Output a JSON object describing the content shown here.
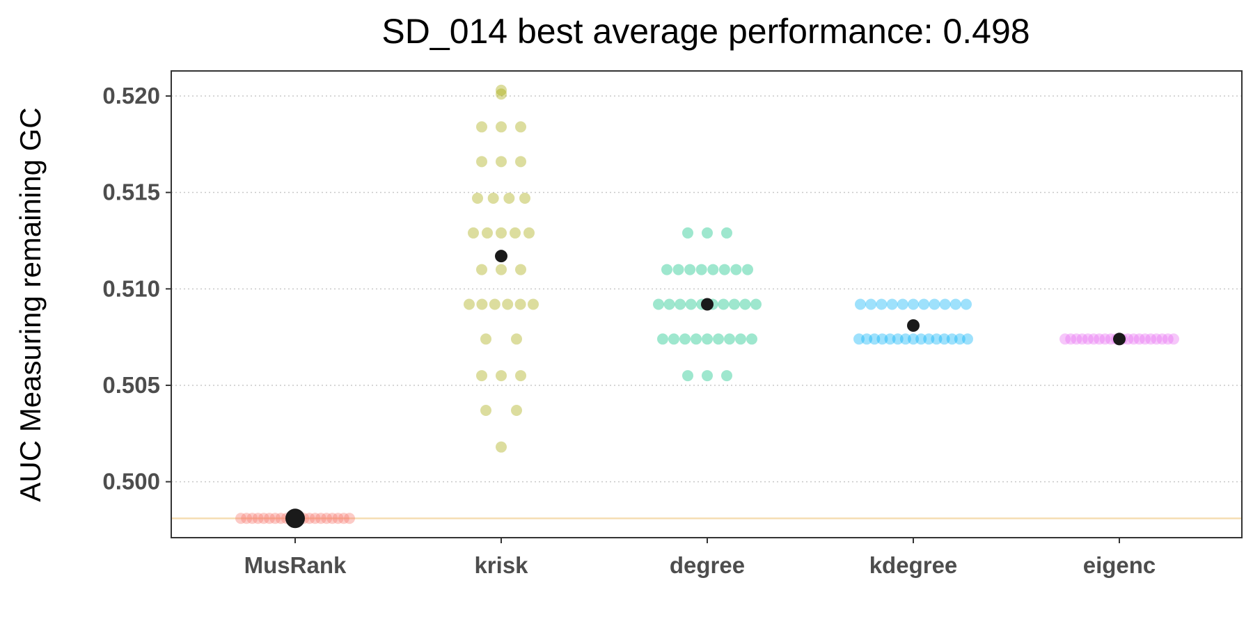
{
  "chart_data": {
    "type": "scatter",
    "title": "SD_014 best average performance: 0.498",
    "xlabel": "",
    "ylabel": "AUC Measuring remaining GC",
    "categories": [
      "MusRank",
      "krisk",
      "degree",
      "kdegree",
      "eigenc"
    ],
    "ylim": [
      0.4971,
      0.5213
    ],
    "yticks": [
      0.5,
      0.505,
      0.51,
      0.515,
      0.52
    ],
    "ytick_labels": [
      "0.500",
      "0.505",
      "0.510",
      "0.515",
      "0.520"
    ],
    "grid": "horizontal-major-dotted",
    "legend": "none",
    "reference_line": {
      "y": 0.4981,
      "color": "#f5deb3"
    },
    "series": [
      {
        "category": "MusRank",
        "color": "#f8766d",
        "mean": 0.4981,
        "values": [
          0.4981,
          0.4981,
          0.4981,
          0.4981,
          0.4981,
          0.4981,
          0.4981,
          0.4981,
          0.4981,
          0.4981,
          0.4981,
          0.4981,
          0.4981,
          0.4981,
          0.4981,
          0.4981,
          0.4981,
          0.4981,
          0.4981,
          0.4981
        ]
      },
      {
        "category": "krisk",
        "color": "#a3a500",
        "mean": 0.5117,
        "values": [
          0.5203,
          0.5201,
          0.5184,
          0.5184,
          0.5184,
          0.5166,
          0.5166,
          0.5166,
          0.5147,
          0.5147,
          0.5147,
          0.5147,
          0.5129,
          0.5129,
          0.5129,
          0.5129,
          0.5129,
          0.511,
          0.511,
          0.511,
          0.5092,
          0.5092,
          0.5092,
          0.5092,
          0.5092,
          0.5092,
          0.5074,
          0.5074,
          0.5055,
          0.5055,
          0.5055,
          0.5037,
          0.5037,
          0.5018
        ]
      },
      {
        "category": "degree",
        "color": "#00bf7d",
        "mean": 0.5092,
        "values": [
          0.5129,
          0.5129,
          0.5129,
          0.511,
          0.511,
          0.511,
          0.511,
          0.511,
          0.511,
          0.511,
          0.511,
          0.5092,
          0.5092,
          0.5092,
          0.5092,
          0.5092,
          0.5092,
          0.5092,
          0.5092,
          0.5092,
          0.5092,
          0.5074,
          0.5074,
          0.5074,
          0.5074,
          0.5074,
          0.5074,
          0.5074,
          0.5074,
          0.5074,
          0.5055,
          0.5055,
          0.5055
        ]
      },
      {
        "category": "kdegree",
        "color": "#00b0f6",
        "mean": 0.5081,
        "values": [
          0.5092,
          0.5092,
          0.5092,
          0.5092,
          0.5092,
          0.5092,
          0.5092,
          0.5092,
          0.5092,
          0.5092,
          0.5092,
          0.5074,
          0.5074,
          0.5074,
          0.5074,
          0.5074,
          0.5074,
          0.5074,
          0.5074,
          0.5074,
          0.5074,
          0.5074,
          0.5074,
          0.5074,
          0.5074,
          0.5074
        ]
      },
      {
        "category": "eigenc",
        "color": "#e76bf3",
        "mean": 0.5074,
        "values": [
          0.5074,
          0.5074,
          0.5074,
          0.5074,
          0.5074,
          0.5074,
          0.5074,
          0.5074,
          0.5074,
          0.5074,
          0.5074,
          0.5074,
          0.5074,
          0.5074,
          0.5074,
          0.5074,
          0.5074,
          0.5074,
          0.5074,
          0.5074
        ]
      }
    ]
  }
}
